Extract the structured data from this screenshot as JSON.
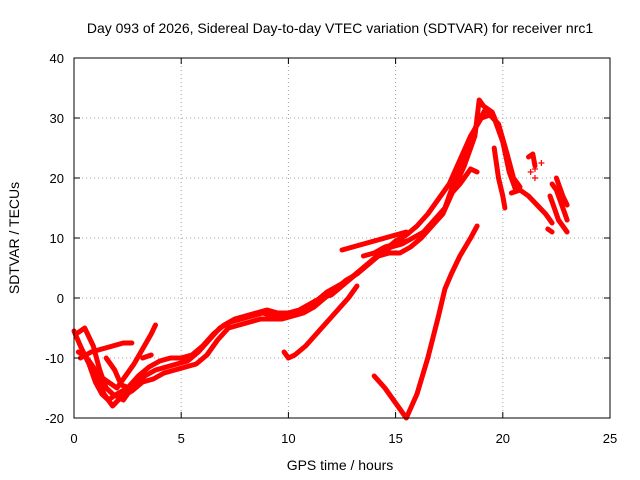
{
  "chart_data": {
    "type": "scatter",
    "title": "Day 093 of 2026, Sidereal Day-to-day VTEC variation (SDTVAR) for receiver nrc1",
    "xlabel": "GPS time / hours",
    "ylabel": "SDTVAR / TECUs",
    "xlim": [
      0,
      25
    ],
    "ylim": [
      -20,
      40
    ],
    "xticks": [
      "0",
      "5",
      "10",
      "15",
      "20",
      "25"
    ],
    "yticks": [
      "-20",
      "-10",
      "0",
      "10",
      "20",
      "30",
      "40"
    ],
    "grid": true,
    "marker": "+",
    "series": [
      {
        "name": "SDTVAR",
        "color": "#ff0000",
        "tracks": [
          [
            [
              0.0,
              -5.5
            ],
            [
              0.3,
              -8
            ],
            [
              0.7,
              -11
            ],
            [
              1.0,
              -14
            ],
            [
              1.3,
              -16
            ],
            [
              1.6,
              -17
            ],
            [
              2.0,
              -16
            ],
            [
              2.5,
              -15
            ],
            [
              3.0,
              -13
            ],
            [
              3.5,
              -11.5
            ],
            [
              4.0,
              -10.5
            ],
            [
              4.5,
              -10
            ],
            [
              5.0,
              -10
            ],
            [
              5.5,
              -9.5
            ],
            [
              6.0,
              -8
            ],
            [
              6.5,
              -6
            ],
            [
              7.0,
              -4.5
            ],
            [
              7.5,
              -3.5
            ],
            [
              8.0,
              -3
            ],
            [
              8.5,
              -2.5
            ],
            [
              9.0,
              -2
            ],
            [
              9.5,
              -2.5
            ],
            [
              10.0,
              -2.5
            ],
            [
              10.5,
              -2
            ],
            [
              11.0,
              -1
            ],
            [
              11.5,
              0
            ],
            [
              12.0,
              0.5
            ],
            [
              12.5,
              2
            ],
            [
              13.0,
              3.5
            ],
            [
              13.5,
              5
            ],
            [
              14.0,
              6.5
            ],
            [
              14.5,
              8
            ],
            [
              15.0,
              9.5
            ],
            [
              15.5,
              10.5
            ],
            [
              16.0,
              12
            ],
            [
              16.5,
              14
            ],
            [
              17.0,
              16.5
            ],
            [
              17.5,
              19
            ],
            [
              18.0,
              23
            ],
            [
              18.5,
              27
            ],
            [
              19.0,
              30
            ],
            [
              19.4,
              30.5
            ],
            [
              19.8,
              29
            ],
            [
              20.2,
              24
            ],
            [
              20.5,
              20
            ],
            [
              20.8,
              18.5
            ]
          ],
          [
            [
              0.1,
              -6
            ],
            [
              0.5,
              -5
            ],
            [
              0.9,
              -8
            ],
            [
              1.2,
              -12
            ],
            [
              1.5,
              -15
            ],
            [
              1.8,
              -16
            ],
            [
              2.3,
              -17
            ],
            [
              2.8,
              -14.5
            ],
            [
              3.3,
              -13
            ],
            [
              3.8,
              -12
            ],
            [
              4.3,
              -11.5
            ],
            [
              4.8,
              -11
            ],
            [
              5.3,
              -10.5
            ],
            [
              5.8,
              -9
            ],
            [
              6.3,
              -7
            ],
            [
              6.8,
              -5
            ],
            [
              7.3,
              -4
            ],
            [
              7.8,
              -3.5
            ],
            [
              8.3,
              -3
            ],
            [
              8.8,
              -2.5
            ],
            [
              9.3,
              -3
            ],
            [
              9.8,
              -3
            ],
            [
              10.3,
              -2.5
            ],
            [
              10.8,
              -1.5
            ],
            [
              11.3,
              -0.5
            ],
            [
              11.8,
              1
            ],
            [
              12.3,
              2
            ],
            [
              12.8,
              3
            ],
            [
              13.3,
              4.5
            ],
            [
              13.8,
              6
            ],
            [
              14.3,
              7.5
            ],
            [
              14.8,
              8.5
            ],
            [
              15.3,
              9
            ],
            [
              15.8,
              10
            ],
            [
              16.3,
              11
            ],
            [
              16.8,
              13
            ],
            [
              17.3,
              15
            ],
            [
              17.8,
              20
            ],
            [
              18.3,
              25
            ],
            [
              18.8,
              29
            ],
            [
              19.2,
              31.5
            ],
            [
              19.6,
              30
            ],
            [
              20.0,
              26
            ],
            [
              20.3,
              21
            ],
            [
              20.6,
              18
            ]
          ],
          [
            [
              0.2,
              -9
            ],
            [
              0.6,
              -10
            ],
            [
              1.0,
              -12
            ],
            [
              1.4,
              -16
            ],
            [
              1.8,
              -18
            ],
            [
              2.2,
              -16.5
            ],
            [
              2.7,
              -15.5
            ],
            [
              3.2,
              -14
            ],
            [
              3.7,
              -13.5
            ],
            [
              4.2,
              -12.5
            ],
            [
              4.7,
              -12
            ],
            [
              5.2,
              -11.5
            ],
            [
              5.7,
              -11
            ],
            [
              6.2,
              -9.5
            ],
            [
              6.7,
              -7
            ],
            [
              7.2,
              -5
            ],
            [
              7.7,
              -4.5
            ],
            [
              8.2,
              -4
            ],
            [
              8.7,
              -3.5
            ],
            [
              9.2,
              -3.5
            ],
            [
              9.7,
              -3.5
            ],
            [
              10.2,
              -3
            ],
            [
              10.7,
              -2.5
            ],
            [
              11.2,
              -1.5
            ],
            [
              11.7,
              0
            ],
            [
              12.2,
              1.5
            ],
            [
              12.7,
              3
            ],
            [
              13.2,
              4
            ],
            [
              13.7,
              5.5
            ],
            [
              14.2,
              7
            ],
            [
              14.7,
              7.5
            ],
            [
              15.2,
              7.5
            ],
            [
              15.7,
              8.5
            ],
            [
              16.2,
              10
            ],
            [
              16.7,
              12
            ],
            [
              17.2,
              14
            ],
            [
              17.7,
              18
            ],
            [
              18.2,
              22
            ],
            [
              18.7,
              27
            ],
            [
              18.9,
              33
            ],
            [
              19.1,
              32
            ],
            [
              19.5,
              31
            ],
            [
              19.9,
              27.5
            ],
            [
              20.3,
              22.5
            ]
          ],
          [
            [
              0.3,
              -10
            ],
            [
              0.8,
              -9
            ],
            [
              1.3,
              -8.5
            ],
            [
              1.8,
              -8
            ],
            [
              2.3,
              -7.5
            ],
            [
              2.7,
              -7.5
            ]
          ],
          [
            [
              1.2,
              -13
            ],
            [
              1.6,
              -14
            ],
            [
              2.0,
              -15
            ],
            [
              2.4,
              -13
            ],
            [
              2.8,
              -11
            ],
            [
              3.2,
              -8.5
            ],
            [
              3.6,
              -6
            ],
            [
              3.8,
              -4.5
            ]
          ],
          [
            [
              1.5,
              -10
            ],
            [
              1.9,
              -12
            ],
            [
              2.2,
              -14.5
            ],
            [
              2.6,
              -15
            ]
          ],
          [
            [
              3.2,
              -10
            ],
            [
              3.6,
              -9.5
            ]
          ],
          [
            [
              9.8,
              -9
            ],
            [
              10.0,
              -10
            ],
            [
              10.3,
              -9.5
            ],
            [
              10.8,
              -8
            ],
            [
              11.3,
              -6
            ],
            [
              11.8,
              -4
            ],
            [
              12.3,
              -2
            ],
            [
              12.8,
              0
            ],
            [
              13.2,
              2
            ]
          ],
          [
            [
              12.5,
              8
            ],
            [
              13.0,
              8.5
            ],
            [
              13.5,
              9
            ],
            [
              14.0,
              9.5
            ],
            [
              14.5,
              10
            ],
            [
              15.0,
              10.5
            ],
            [
              15.5,
              11
            ]
          ],
          [
            [
              13.5,
              7
            ],
            [
              14.0,
              7.5
            ],
            [
              14.5,
              8.5
            ],
            [
              15.0,
              9
            ],
            [
              15.5,
              9.5
            ]
          ],
          [
            [
              17.5,
              17
            ],
            [
              18.0,
              19
            ],
            [
              18.5,
              21.5
            ],
            [
              18.8,
              21
            ]
          ],
          [
            [
              14.0,
              -13
            ],
            [
              14.5,
              -15
            ],
            [
              15.0,
              -17.5
            ],
            [
              15.5,
              -20
            ],
            [
              16.0,
              -16
            ],
            [
              16.5,
              -10
            ],
            [
              17.0,
              -3
            ],
            [
              17.3,
              1.5
            ],
            [
              17.6,
              4
            ],
            [
              18.0,
              7
            ],
            [
              18.5,
              10
            ],
            [
              18.8,
              12
            ]
          ],
          [
            [
              19.6,
              25
            ],
            [
              19.8,
              20
            ],
            [
              20.0,
              17
            ],
            [
              20.1,
              15
            ]
          ],
          [
            [
              20.4,
              17.5
            ],
            [
              20.8,
              18
            ],
            [
              21.2,
              17
            ],
            [
              21.6,
              15.5
            ],
            [
              22.0,
              14
            ],
            [
              22.3,
              12.5
            ]
          ],
          [
            [
              21.2,
              23.5
            ],
            [
              21.4,
              24
            ],
            [
              21.5,
              22
            ]
          ],
          [
            [
              22.1,
              11.5
            ],
            [
              22.3,
              11
            ]
          ],
          [
            [
              22.3,
              19
            ],
            [
              22.5,
              18
            ],
            [
              22.7,
              16
            ],
            [
              22.9,
              14
            ],
            [
              23.0,
              13
            ]
          ],
          [
            [
              22.5,
              20
            ],
            [
              22.8,
              17
            ],
            [
              23.0,
              15.5
            ]
          ],
          [
            [
              22.2,
              17
            ],
            [
              22.4,
              15
            ],
            [
              22.6,
              13
            ],
            [
              22.8,
              12
            ],
            [
              23.0,
              11
            ]
          ]
        ],
        "scatter_points": [
          [
            21.5,
            21.5
          ],
          [
            21.8,
            22.5
          ],
          [
            21.5,
            20
          ],
          [
            21.3,
            21
          ]
        ]
      }
    ]
  }
}
